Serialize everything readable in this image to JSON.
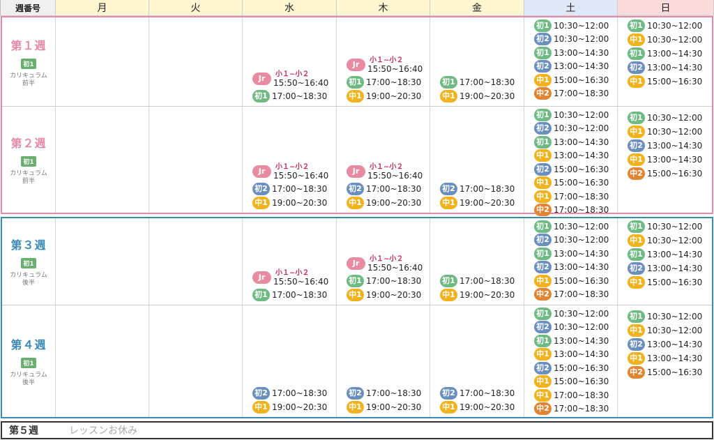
{
  "header": {
    "week": "週番号",
    "days": [
      "月",
      "火",
      "水",
      "木",
      "金",
      "土",
      "日"
    ]
  },
  "weeks": [
    {
      "title": "第１週",
      "tag": "初1",
      "note": [
        "カリキュラム",
        "前半"
      ]
    },
    {
      "title": "第２週",
      "tag": "初1",
      "note": [
        "カリキュラム",
        "前半"
      ]
    },
    {
      "title": "第３週",
      "tag": "初1",
      "note": [
        "カリキュラム",
        "後半"
      ]
    },
    {
      "title": "第４週",
      "tag": "初1",
      "note": [
        "カリキュラム",
        "後半"
      ]
    }
  ],
  "week5": {
    "title": "第５週",
    "note": "レッスンお休み"
  },
  "jr": {
    "label": "Jr",
    "grade": "小１~小２",
    "time": "15:50~16:40"
  },
  "schedule": {
    "w1": {
      "wed": [
        {
          "c": "初1",
          "t": "17:00~18:30"
        }
      ],
      "thu": [
        {
          "c": "初1",
          "t": "17:00~18:30"
        },
        {
          "c": "中1",
          "t": "19:00~20:30"
        }
      ],
      "fri": [
        {
          "c": "初1",
          "t": "17:00~18:30"
        },
        {
          "c": "中1",
          "t": "19:00~20:30"
        }
      ],
      "sat": [
        {
          "c": "初1",
          "t": "10:30~12:00"
        },
        {
          "c": "初2",
          "t": "10:30~12:00"
        },
        {
          "c": "初1",
          "t": "13:00~14:30"
        },
        {
          "c": "初2",
          "t": "13:00~14:30"
        },
        {
          "c": "中1",
          "t": "15:00~16:30"
        },
        {
          "c": "中2",
          "t": "17:00~18:30"
        }
      ],
      "sun": [
        {
          "c": "初1",
          "t": "10:30~12:00"
        },
        {
          "c": "中1",
          "t": "10:30~12:00"
        },
        {
          "c": "初1",
          "t": "13:00~14:30"
        },
        {
          "c": "初2",
          "t": "13:00~14:30"
        },
        {
          "c": "中1",
          "t": "15:00~16:30"
        }
      ]
    },
    "w2": {
      "wed": [
        {
          "c": "初2",
          "t": "17:00~18:30"
        },
        {
          "c": "中1",
          "t": "19:00~20:30"
        }
      ],
      "thu": [
        {
          "c": "初2",
          "t": "17:00~18:30"
        },
        {
          "c": "中1",
          "t": "19:00~20:30"
        }
      ],
      "fri": [
        {
          "c": "初2",
          "t": "17:00~18:30"
        },
        {
          "c": "中1",
          "t": "19:00~20:30"
        }
      ],
      "sat": [
        {
          "c": "初1",
          "t": "10:30~12:00"
        },
        {
          "c": "初2",
          "t": "10:30~12:00"
        },
        {
          "c": "初1",
          "t": "13:00~14:30"
        },
        {
          "c": "中1",
          "t": "13:00~14:30"
        },
        {
          "c": "初2",
          "t": "15:00~16:30"
        },
        {
          "c": "中1",
          "t": "15:00~16:30"
        },
        {
          "c": "中1",
          "t": "17:00~18:30"
        },
        {
          "c": "中2",
          "t": "17:00~18:30"
        }
      ],
      "sun": [
        {
          "c": "初1",
          "t": "10:30~12:00"
        },
        {
          "c": "中1",
          "t": "10:30~12:00"
        },
        {
          "c": "初2",
          "t": "13:00~14:30"
        },
        {
          "c": "中1",
          "t": "13:00~14:30"
        },
        {
          "c": "中2",
          "t": "15:00~16:30"
        }
      ]
    },
    "w3": {
      "wed": [
        {
          "c": "初1",
          "t": "17:00~18:30"
        }
      ],
      "thu": [
        {
          "c": "初1",
          "t": "17:00~18:30"
        },
        {
          "c": "中1",
          "t": "19:00~20:30"
        }
      ],
      "fri": [
        {
          "c": "初1",
          "t": "17:00~18:30"
        },
        {
          "c": "中1",
          "t": "19:00~20:30"
        }
      ],
      "sat": [
        {
          "c": "初1",
          "t": "10:30~12:00"
        },
        {
          "c": "初2",
          "t": "10:30~12:00"
        },
        {
          "c": "初1",
          "t": "13:00~14:30"
        },
        {
          "c": "初2",
          "t": "13:00~14:30"
        },
        {
          "c": "中1",
          "t": "15:00~16:30"
        },
        {
          "c": "中2",
          "t": "17:00~18:30"
        }
      ],
      "sun": [
        {
          "c": "初1",
          "t": "10:30~12:00"
        },
        {
          "c": "中1",
          "t": "10:30~12:00"
        },
        {
          "c": "初1",
          "t": "13:00~14:30"
        },
        {
          "c": "初2",
          "t": "13:00~14:30"
        },
        {
          "c": "中1",
          "t": "15:00~16:30"
        }
      ]
    },
    "w4": {
      "wed": [
        {
          "c": "初2",
          "t": "17:00~18:30"
        },
        {
          "c": "中1",
          "t": "19:00~20:30"
        }
      ],
      "thu": [
        {
          "c": "初2",
          "t": "17:00~18:30"
        },
        {
          "c": "中1",
          "t": "19:00~20:30"
        }
      ],
      "fri": [
        {
          "c": "初2",
          "t": "17:00~18:30"
        },
        {
          "c": "中1",
          "t": "19:00~20:30"
        }
      ],
      "sat": [
        {
          "c": "初1",
          "t": "10:30~12:00"
        },
        {
          "c": "初2",
          "t": "10:30~12:00"
        },
        {
          "c": "初1",
          "t": "13:00~14:30"
        },
        {
          "c": "中1",
          "t": "13:00~14:30"
        },
        {
          "c": "初2",
          "t": "15:00~16:30"
        },
        {
          "c": "中1",
          "t": "15:00~16:30"
        },
        {
          "c": "中1",
          "t": "17:00~18:30"
        },
        {
          "c": "中2",
          "t": "17:00~18:30"
        }
      ],
      "sun": [
        {
          "c": "初1",
          "t": "10:30~12:00"
        },
        {
          "c": "中1",
          "t": "10:30~12:00"
        },
        {
          "c": "初2",
          "t": "13:00~14:30"
        },
        {
          "c": "中1",
          "t": "13:00~14:30"
        },
        {
          "c": "中2",
          "t": "15:00~16:30"
        }
      ]
    }
  },
  "colors": {
    "w12": "#e48aa6",
    "w34": "#3a8ab5",
    "初1": "#6fb982",
    "初2": "#6b8fbd",
    "中1": "#f0b21d",
    "中2": "#e18533",
    "Jr": "#e98aa3"
  }
}
